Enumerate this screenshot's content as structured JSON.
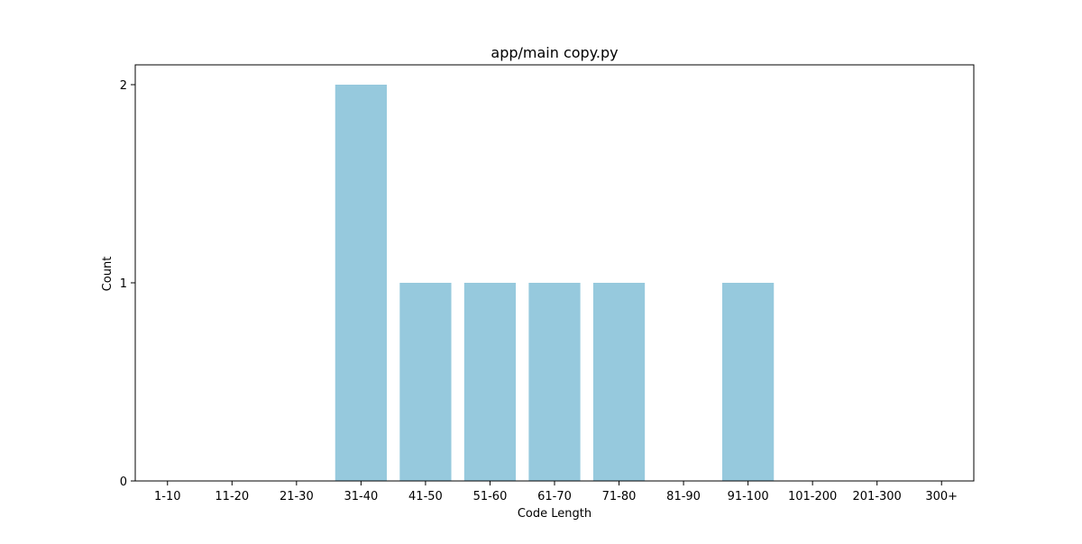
{
  "chart_data": {
    "type": "bar",
    "title": "app/main copy.py",
    "xlabel": "Code Length",
    "ylabel": "Count",
    "categories": [
      "1-10",
      "11-20",
      "21-30",
      "31-40",
      "41-50",
      "51-60",
      "61-70",
      "71-80",
      "81-90",
      "91-100",
      "101-200",
      "201-300",
      "300+"
    ],
    "values": [
      0,
      0,
      0,
      2,
      1,
      1,
      1,
      1,
      0,
      1,
      0,
      0,
      0
    ],
    "ylim": [
      0,
      2.1
    ],
    "yticks": [
      0,
      1,
      2
    ],
    "bar_color": "#96c9dd",
    "grid": false,
    "legend": "none"
  }
}
